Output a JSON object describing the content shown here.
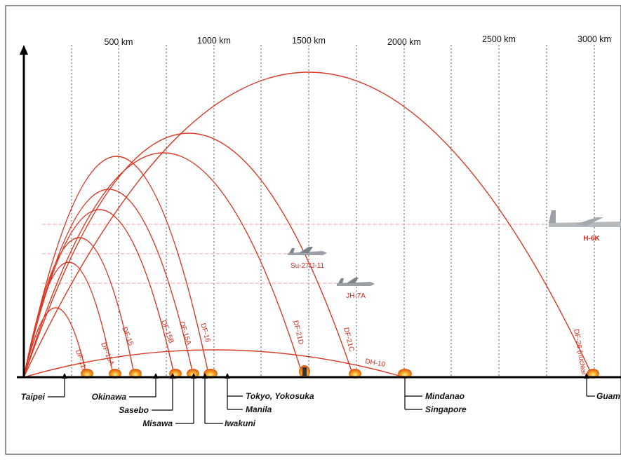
{
  "distance_labels": [
    "500 km",
    "1000 km",
    "1500 km",
    "2000 km",
    "2500 km",
    "3000 km"
  ],
  "missiles": [
    {
      "name": "DF-11A",
      "range_km": 300
    },
    {
      "name": "DF-15A",
      "range_km": 500
    },
    {
      "name": "DF-15",
      "range_km": 600
    },
    {
      "name": "DF-15B",
      "range_km": 800
    },
    {
      "name": "DF-15A",
      "range_km": 900
    },
    {
      "name": "DF-16",
      "range_km": 1000
    },
    {
      "name": "DF-21D",
      "range_km": 1500
    },
    {
      "name": "DF-21C",
      "range_km": 1750
    },
    {
      "name": "DH-10",
      "range_km": 2000
    },
    {
      "name": "DF-26 (nuclear)",
      "range_km": 3000
    }
  ],
  "aircraft": [
    {
      "name": "Su-27/J-11"
    },
    {
      "name": "JH-7A"
    },
    {
      "name": "H-6K"
    }
  ],
  "locations": [
    "Taipei",
    "Okinawa",
    "Sasebo",
    "Misawa",
    "Iwakuni",
    "Tokyo, Yokosuka",
    "Manila",
    "Mindanao",
    "Singapore",
    "Guam"
  ],
  "colors": {
    "trajectory": "#d83a26",
    "axis": "#000000",
    "gridline": "#555555",
    "refline": "#e8a0a0",
    "explosion": "#f08a1c"
  }
}
